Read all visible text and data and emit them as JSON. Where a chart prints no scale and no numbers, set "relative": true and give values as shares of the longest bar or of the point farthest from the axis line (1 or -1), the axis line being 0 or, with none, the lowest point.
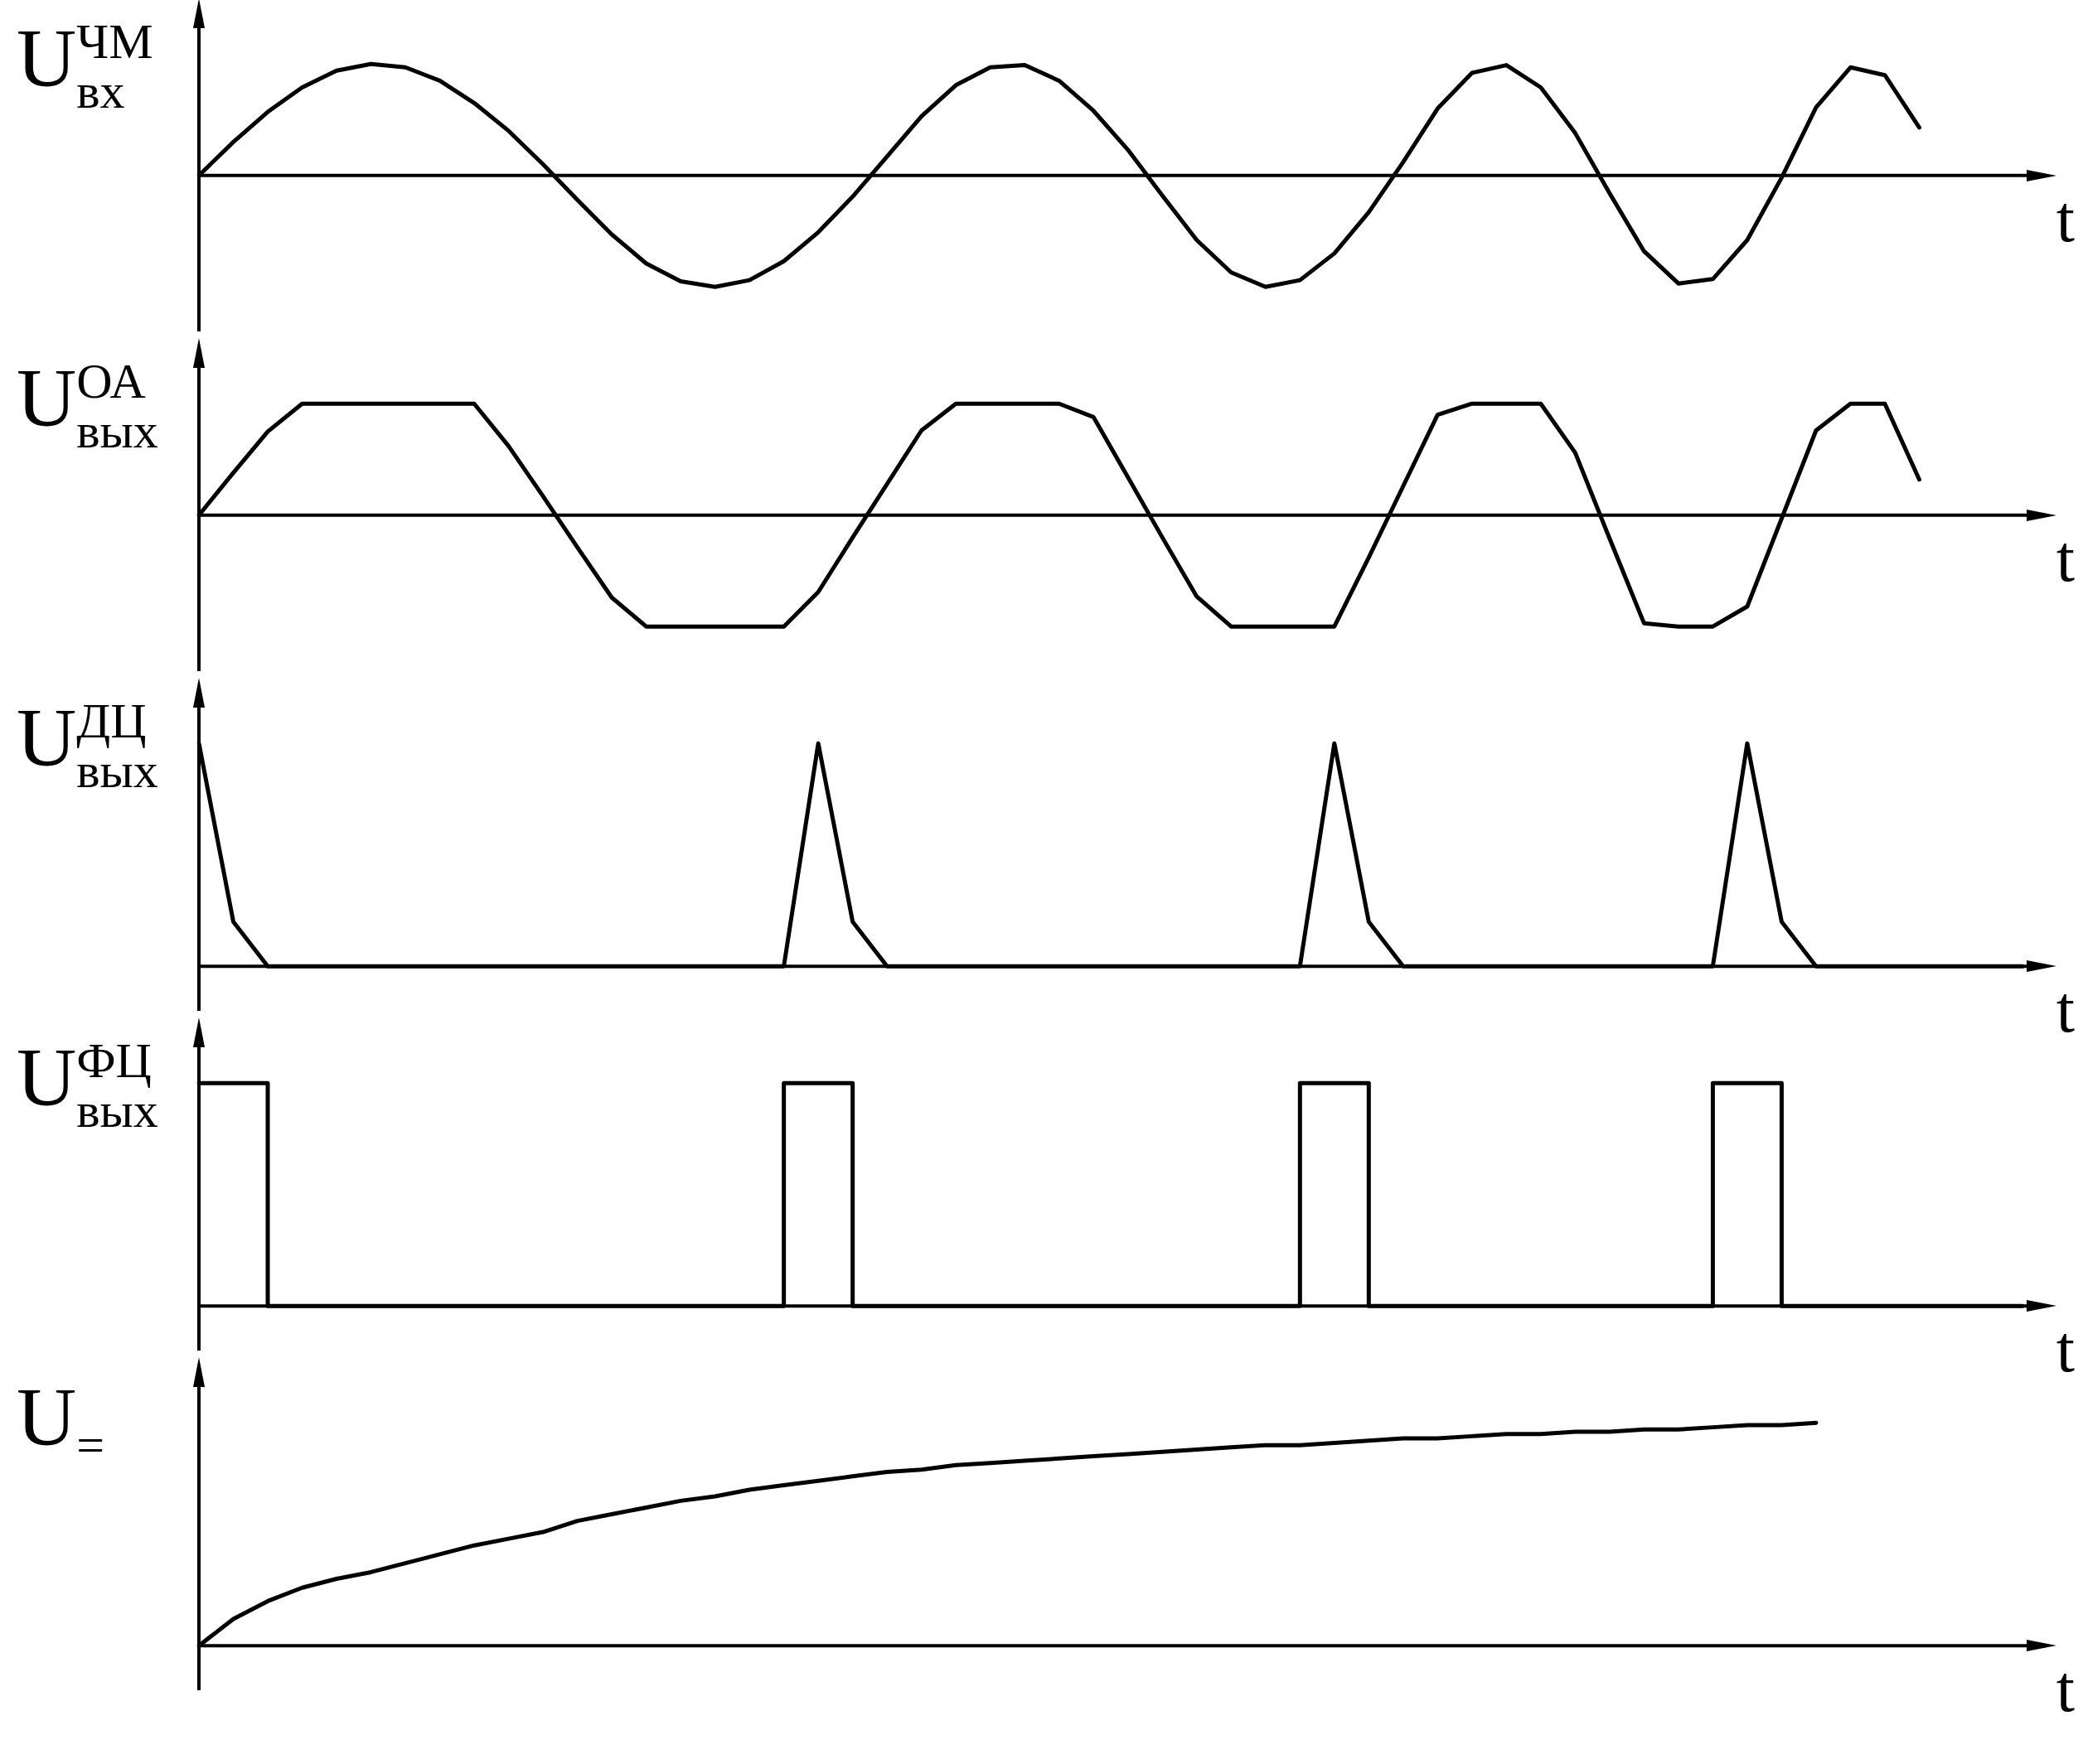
{
  "chart_data": [
    {
      "type": "line",
      "ylabel": "U$^{ЧМ}$$_{вх}$",
      "xlabel": "t",
      "relative": true,
      "color": "#000000",
      "categories": [
        null,
        null,
        null,
        null,
        null,
        null,
        null,
        null,
        null,
        null,
        null,
        null,
        null,
        null,
        null,
        null,
        null,
        null,
        null,
        null,
        null,
        null,
        null,
        null,
        null,
        null,
        null,
        null,
        null,
        null,
        null,
        null,
        null,
        null,
        null,
        null,
        null,
        null,
        null,
        null,
        null,
        null,
        null,
        null,
        null,
        null,
        null,
        null,
        null,
        null,
        null,
        null,
        null,
        null
      ],
      "values": [
        0,
        0.3,
        0.57,
        0.79,
        0.94,
        1,
        0.97,
        0.85,
        0.65,
        0.4,
        0.1,
        -0.22,
        -0.53,
        -0.79,
        -0.95,
        -1,
        -0.94,
        -0.77,
        -0.51,
        -0.19,
        0.17,
        0.53,
        0.81,
        0.97,
        0.99,
        0.85,
        0.58,
        0.23,
        -0.18,
        -0.58,
        -0.87,
        -1,
        -0.94,
        -0.7,
        -0.33,
        0.12,
        0.6,
        0.92,
        0.99,
        0.79,
        0.38,
        -0.16,
        -0.68,
        -0.97,
        -0.93,
        -0.58,
        -0.02,
        0.61,
        0.97,
        0.9,
        0.43,
        null,
        null,
        null
      ]
    },
    {
      "type": "line",
      "ylabel": "U$^{ОА}$$_{вых}$",
      "xlabel": "t",
      "relative": true,
      "color": "#000000",
      "categories": [
        null,
        null,
        null,
        null,
        null,
        null,
        null,
        null,
        null,
        null,
        null,
        null,
        null,
        null,
        null,
        null,
        null,
        null,
        null,
        null,
        null,
        null,
        null,
        null,
        null,
        null,
        null,
        null,
        null,
        null,
        null,
        null,
        null,
        null,
        null,
        null,
        null,
        null,
        null,
        null,
        null,
        null,
        null,
        null,
        null,
        null,
        null,
        null,
        null,
        null,
        null,
        null,
        null,
        null
      ],
      "values": [
        0,
        0.38,
        0.75,
        1,
        1,
        1,
        1,
        1,
        1,
        0.62,
        0.17,
        -0.29,
        -0.74,
        -1,
        -1,
        -1,
        -1,
        -1,
        -0.69,
        -0.2,
        0.28,
        0.76,
        1,
        1,
        1,
        1,
        0.88,
        0.34,
        -0.2,
        -0.73,
        -1,
        -1,
        -1,
        -1,
        -0.38,
        0.26,
        0.9,
        1,
        1,
        1,
        0.56,
        -0.21,
        -0.97,
        -1,
        -1,
        -0.82,
        -0.03,
        0.76,
        1,
        1,
        0.32,
        null,
        null,
        null
      ]
    },
    {
      "type": "line",
      "ylabel": "U$^{ДЦ}$$_{вых}$",
      "xlabel": "t",
      "relative": true,
      "color": "#000000",
      "categories": [
        null,
        null,
        null,
        null,
        null,
        null,
        null,
        null,
        null,
        null,
        null,
        null,
        null,
        null,
        null,
        null,
        null,
        null,
        null,
        null,
        null,
        null,
        null,
        null,
        null,
        null,
        null,
        null,
        null,
        null,
        null,
        null,
        null,
        null,
        null,
        null,
        null,
        null,
        null,
        null,
        null,
        null,
        null,
        null,
        null,
        null,
        null,
        null,
        null,
        null,
        null,
        null,
        null,
        null
      ],
      "values": [
        1,
        0.2,
        0,
        0,
        0,
        0,
        0,
        0,
        0,
        0,
        0,
        0,
        0,
        0,
        0,
        0,
        0,
        0,
        1,
        0.2,
        0,
        0,
        0,
        0,
        0,
        0,
        0,
        0,
        0,
        0,
        0,
        0,
        0,
        1,
        0.2,
        0,
        0,
        0,
        0,
        0,
        0,
        0,
        0,
        0,
        0,
        1,
        0.2,
        0,
        0,
        0,
        0,
        0,
        0,
        0
      ]
    },
    {
      "type": "step",
      "ylabel": "U$^{ФЦ}$$_{вых}$",
      "xlabel": "t",
      "relative": true,
      "color": "#000000",
      "categories": [
        null,
        null,
        null,
        null,
        null,
        null,
        null,
        null,
        null,
        null,
        null,
        null,
        null,
        null,
        null,
        null,
        null,
        null,
        null,
        null,
        null,
        null,
        null,
        null,
        null,
        null,
        null,
        null,
        null,
        null,
        null,
        null,
        null,
        null,
        null,
        null,
        null,
        null,
        null,
        null,
        null,
        null,
        null,
        null,
        null,
        null,
        null,
        null,
        null,
        null,
        null,
        null,
        null,
        null
      ],
      "values": [
        1,
        1,
        1,
        0,
        0,
        0,
        0,
        0,
        0,
        0,
        0,
        0,
        0,
        0,
        0,
        0,
        0,
        0,
        1,
        1,
        0,
        0,
        0,
        0,
        0,
        0,
        0,
        0,
        0,
        0,
        0,
        0,
        0,
        1,
        1,
        0,
        0,
        0,
        0,
        0,
        0,
        0,
        0,
        0,
        0,
        1,
        1,
        0,
        0,
        0,
        0,
        0,
        0,
        0
      ]
    },
    {
      "type": "line",
      "ylabel": "U$_{=}$",
      "xlabel": "t",
      "relative": true,
      "color": "#000000",
      "categories": [
        null,
        null,
        null,
        null,
        null,
        null,
        null,
        null,
        null,
        null,
        null,
        null,
        null,
        null,
        null,
        null,
        null,
        null,
        null,
        null,
        null,
        null,
        null,
        null,
        null,
        null,
        null,
        null,
        null,
        null,
        null,
        null,
        null,
        null,
        null,
        null,
        null,
        null,
        null,
        null,
        null,
        null,
        null,
        null,
        null,
        null,
        null,
        null,
        null,
        null,
        null,
        null,
        null,
        null
      ],
      "values": [
        0,
        0.12,
        0.2,
        0.26,
        0.3,
        0.33,
        0.37,
        0.41,
        0.45,
        0.48,
        0.51,
        0.56,
        0.59,
        0.62,
        0.65,
        0.67,
        0.7,
        0.72,
        0.74,
        0.76,
        0.78,
        0.79,
        0.81,
        0.82,
        0.83,
        0.84,
        0.85,
        0.86,
        0.87,
        0.88,
        0.89,
        0.9,
        0.9,
        0.91,
        0.92,
        0.93,
        0.93,
        0.94,
        0.95,
        0.95,
        0.96,
        0.96,
        0.97,
        0.97,
        0.98,
        0.99,
        0.99,
        1,
        null,
        null,
        null,
        null,
        null,
        null
      ]
    }
  ]
}
